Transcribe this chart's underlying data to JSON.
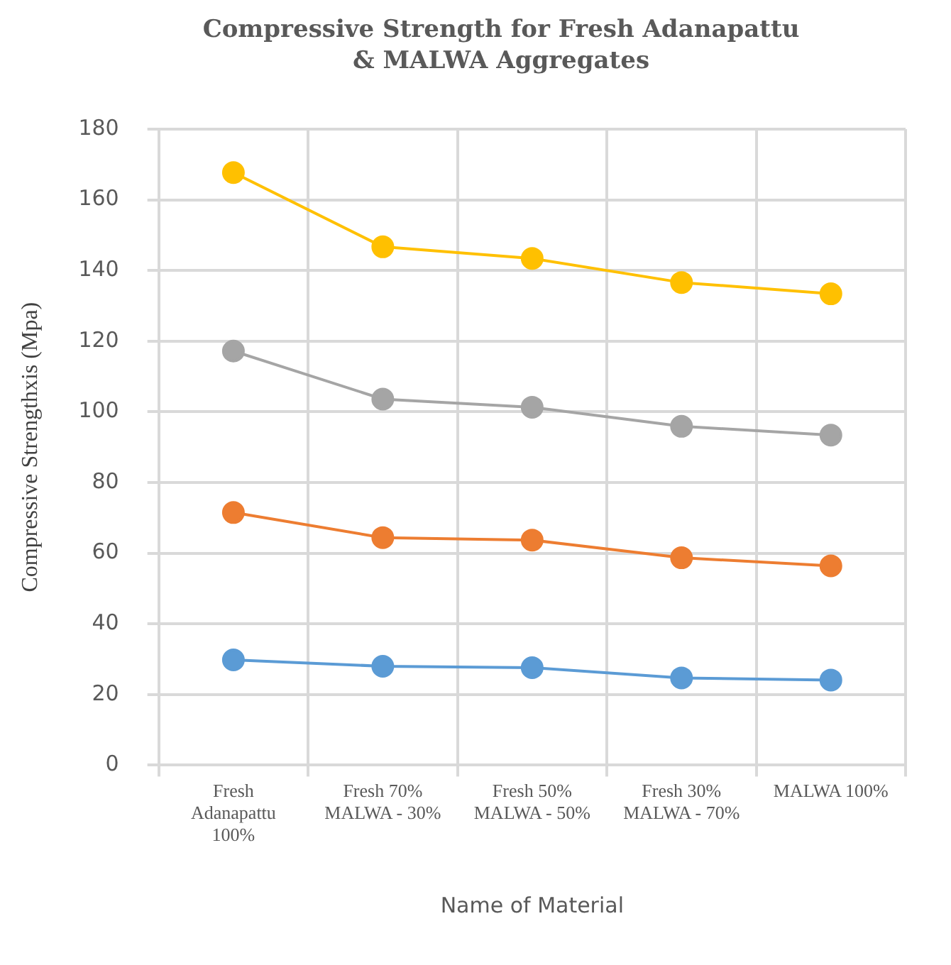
{
  "chart_data": {
    "type": "line",
    "title": "Compressive Strength for Fresh Adanapattu & MALWA Aggregates",
    "xlabel": "Name of Material",
    "ylabel": "Compressive Strengthxis (Mpa)",
    "categories": [
      "Fresh Adanapattu 100%",
      "Fresh 70% MALWA - 30%",
      "Fresh 50% MALWA - 50%",
      "Fresh 30% MALWA - 70%",
      "MALWA 100%"
    ],
    "series": [
      {
        "color": "#5b9bd5",
        "values": [
          29.8,
          28,
          27.6,
          24.7,
          24.1
        ]
      },
      {
        "color": "#ed7d31",
        "values": [
          71.5,
          64.4,
          63.7,
          58.7,
          56.4
        ]
      },
      {
        "color": "#a5a5a5",
        "values": [
          117.2,
          103.6,
          101.3,
          95.9,
          93.4
        ]
      },
      {
        "color": "#ffc000",
        "values": [
          167.7,
          146.7,
          143.4,
          136.6,
          133.4
        ]
      }
    ],
    "ylim": [
      0,
      180
    ],
    "yticks": [
      0,
      20,
      40,
      60,
      80,
      100,
      120,
      140,
      160,
      180
    ],
    "grid": true,
    "legend": false,
    "marker": "circle",
    "line_style": "solid"
  }
}
